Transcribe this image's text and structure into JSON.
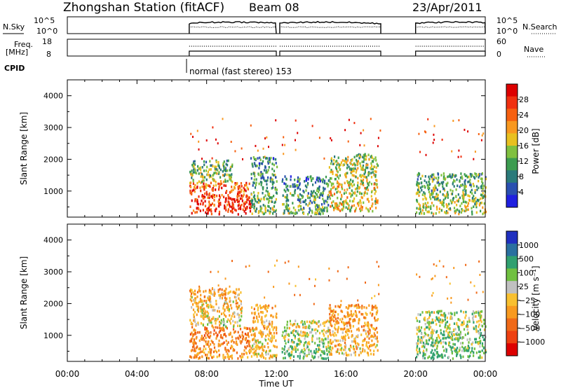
{
  "header": {
    "station": "Zhongshan Station (fitACF)",
    "beam": "Beam 08",
    "date": "23/Apr/2011"
  },
  "top_panels": {
    "nsky_label": "N.Sky",
    "nsearch_label": "N.Search",
    "left_ticks_top": [
      "10^5",
      "10^0"
    ],
    "right_ticks_top": [
      "10^5",
      "10^0"
    ],
    "freq_label_line1": "Freq.",
    "freq_label_line2": "[MHz]",
    "freq_ticks": [
      "18",
      "8"
    ],
    "nave_label": "Nave",
    "nave_ticks": [
      "60",
      "0"
    ],
    "cpid_label": "CPID",
    "cpid_text": "normal (fast stereo) 153"
  },
  "axes": {
    "ylabel": "Slant Range [km]",
    "xlabel": "Time UT",
    "y_ticks": [
      "4000",
      "3000",
      "2000",
      "1000"
    ],
    "x_ticks": [
      "00:00",
      "04:00",
      "08:00",
      "12:00",
      "16:00",
      "20:00",
      "00:00"
    ]
  },
  "power_colorbar": {
    "label": "Power [dB]",
    "ticks": [
      "28",
      "24",
      "20",
      "16",
      "12",
      "8",
      "4"
    ],
    "colors": [
      "#dd0000",
      "#f03010",
      "#f66010",
      "#f89820",
      "#e8c020",
      "#80c040",
      "#3c9c50",
      "#2a7a7a",
      "#2a50b0",
      "#2020e0"
    ]
  },
  "velocity_colorbar": {
    "label": "Velocity [m s⁻¹]",
    "ticks": [
      "1000",
      "500",
      "100",
      "25",
      "−25",
      "−100",
      "−500",
      "−1000"
    ],
    "colors": [
      "#2030c0",
      "#2a70a0",
      "#30a070",
      "#70c040",
      "#c0c0c0",
      "#f8c030",
      "#f89a20",
      "#f06a18",
      "#ee4010",
      "#dd0000"
    ]
  },
  "chart_data": {
    "type": "heatmap",
    "x_range_hours": [
      0,
      24
    ],
    "y_range_km": [
      180,
      4500
    ],
    "operating_intervals_hours": [
      [
        7.0,
        12.0
      ],
      [
        12.2,
        18.0
      ],
      [
        20.0,
        24.0
      ]
    ],
    "power_panel": {
      "clusters": [
        {
          "t": [
            7.0,
            10.5
          ],
          "r": [
            300,
            1300
          ],
          "level": 26
        },
        {
          "t": [
            7.0,
            9.5
          ],
          "r": [
            1300,
            2000
          ],
          "level": 12
        },
        {
          "t": [
            10.5,
            12.0
          ],
          "r": [
            300,
            2100
          ],
          "level": 10
        },
        {
          "t": [
            12.3,
            15.0
          ],
          "r": [
            300,
            1500
          ],
          "level": 9
        },
        {
          "t": [
            15.0,
            17.8
          ],
          "r": [
            400,
            2200
          ],
          "level": 15
        },
        {
          "t": [
            20.0,
            24.0
          ],
          "r": [
            300,
            1600
          ],
          "level": 12
        }
      ]
    },
    "velocity_panel": {
      "clusters": [
        {
          "t": [
            7.0,
            10.5
          ],
          "r": [
            300,
            1300
          ],
          "level": -400
        },
        {
          "t": [
            7.0,
            10.0
          ],
          "r": [
            1300,
            2500
          ],
          "level": -150
        },
        {
          "t": [
            10.5,
            12.0
          ],
          "r": [
            300,
            2000
          ],
          "level": -200
        },
        {
          "t": [
            12.3,
            15.0
          ],
          "r": [
            300,
            1500
          ],
          "level": 50
        },
        {
          "t": [
            15.0,
            17.8
          ],
          "r": [
            400,
            2000
          ],
          "level": -250
        },
        {
          "t": [
            20.0,
            24.0
          ],
          "r": [
            300,
            1800
          ],
          "level": 100
        }
      ]
    }
  }
}
